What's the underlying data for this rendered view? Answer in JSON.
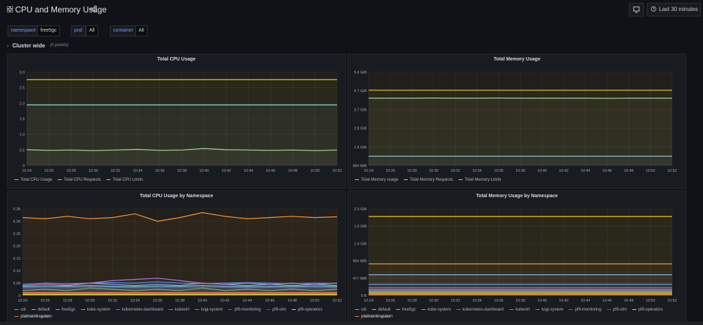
{
  "header": {
    "title": "CPU and Memory Usage",
    "time_range": "Last 30 minutes"
  },
  "variables": [
    {
      "key": "namespace",
      "value": "free5gc"
    },
    {
      "key": "pod",
      "value": "All"
    },
    {
      "key": "container",
      "value": "All"
    }
  ],
  "row": {
    "title": "Cluster wide",
    "count": "(0 panels)"
  },
  "panels": {
    "cpu": {
      "title": "Total CPU Usage"
    },
    "mem": {
      "title": "Total Memory Usage"
    },
    "cpu_ns": {
      "title": "Total CPU Usage by Namespace"
    },
    "mem_ns": {
      "title": "Total Memory Usage by Namespace"
    }
  },
  "colors": {
    "green": "#73bf69",
    "yellow": "#f2cc0c",
    "cyan": "#8ab8ff",
    "teal": "#73bf69",
    "orange": "#ff9830",
    "red": "#f2495c",
    "blue": "#5794f2",
    "purple": "#b877d9",
    "lightblue": "#8ab8ff"
  },
  "chart_data": [
    {
      "type": "line",
      "title": "Total CPU Usage",
      "x": [
        "10:24",
        "10:26",
        "10:28",
        "10:30",
        "10:32",
        "10:34",
        "10:36",
        "10:38",
        "10:40",
        "10:42",
        "10:44",
        "10:46",
        "10:48",
        "10:50",
        "10:52"
      ],
      "ylim": [
        0,
        3.0
      ],
      "yticks": [
        "0",
        "0.5",
        "1.0",
        "1.5",
        "2.0",
        "2.5",
        "3.0"
      ],
      "series": [
        {
          "name": "Total CPU Usage",
          "color": "#a7d99a",
          "values": [
            0.51,
            0.49,
            0.5,
            0.48,
            0.5,
            0.52,
            0.49,
            0.5,
            0.55,
            0.51,
            0.5,
            0.49,
            0.5,
            0.48,
            0.5
          ]
        },
        {
          "name": "Total CPU Requests",
          "color": "#f2cc0c",
          "values": [
            2.76,
            2.76,
            2.76,
            2.76,
            2.76,
            2.76,
            2.76,
            2.76,
            2.76,
            2.76,
            2.76,
            2.76,
            2.76,
            2.76,
            2.76
          ]
        },
        {
          "name": "Total CPU Limits",
          "color": "#8bd7e8",
          "values": [
            1.95,
            1.95,
            1.95,
            1.95,
            1.95,
            1.95,
            1.95,
            1.95,
            1.95,
            1.95,
            1.95,
            1.95,
            1.95,
            1.95,
            1.95
          ]
        }
      ]
    },
    {
      "type": "line",
      "title": "Total Memory Usage",
      "x": [
        "10:24",
        "10:26",
        "10:28",
        "10:30",
        "10:32",
        "10:34",
        "10:36",
        "10:38",
        "10:40",
        "10:42",
        "10:44",
        "10:46",
        "10:48",
        "10:50",
        "10:52"
      ],
      "ylim": [
        0.93,
        5.6
      ],
      "yticks": [
        "954 MiB",
        "1.9 GiB",
        "2.8 GiB",
        "3.7 GiB",
        "4.7 GiB",
        "5.6 GiB"
      ],
      "series": [
        {
          "name": "Total Memory usage",
          "color": "#a7d99a",
          "values": [
            4.3,
            4.3,
            4.3,
            4.31,
            4.3,
            4.3,
            4.31,
            4.3,
            4.3,
            4.3,
            4.3,
            4.29,
            4.3,
            4.3,
            4.3
          ]
        },
        {
          "name": "Total Memory Requests",
          "color": "#f2cc0c",
          "values": [
            4.7,
            4.7,
            4.7,
            4.7,
            4.7,
            4.7,
            4.7,
            4.7,
            4.7,
            4.7,
            4.7,
            4.7,
            4.7,
            4.7,
            4.7
          ]
        },
        {
          "name": "Total Memory Limits",
          "color": "#8bd7e8",
          "values": [
            1.4,
            1.4,
            1.4,
            1.4,
            1.4,
            1.4,
            1.4,
            1.4,
            1.4,
            1.4,
            1.4,
            1.4,
            1.4,
            1.4,
            1.4
          ]
        }
      ]
    },
    {
      "type": "line",
      "title": "Total CPU Usage by Namespace",
      "x": [
        "10:24",
        "10:26",
        "10:28",
        "10:30",
        "10:32",
        "10:34",
        "10:36",
        "10:38",
        "10:40",
        "10:42",
        "10:44",
        "10:46",
        "10:48",
        "10:50",
        "10:52"
      ],
      "ylim": [
        0,
        0.35
      ],
      "yticks": [
        "0",
        "0.05",
        "0.10",
        "0.15",
        "0.20",
        "0.25",
        "0.30",
        "0.35"
      ],
      "series": [
        {
          "name": "cdi",
          "color": "#73bf69",
          "values": [
            0.02,
            0.025,
            0.02,
            0.03,
            0.025,
            0.02,
            0.025,
            0.02,
            0.03,
            0.02,
            0.025,
            0.02,
            0.025,
            0.02,
            0.025
          ]
        },
        {
          "name": "default",
          "color": "#f2cc0c",
          "values": [
            0.005,
            0.005,
            0.005,
            0.005,
            0.005,
            0.005,
            0.005,
            0.005,
            0.005,
            0.005,
            0.005,
            0.005,
            0.005,
            0.005,
            0.005
          ]
        },
        {
          "name": "free5gc",
          "color": "#8ab8ff",
          "values": [
            0.04,
            0.045,
            0.04,
            0.05,
            0.045,
            0.04,
            0.045,
            0.04,
            0.05,
            0.045,
            0.04,
            0.045,
            0.04,
            0.045,
            0.04
          ]
        },
        {
          "name": "kube-system",
          "color": "#ff9830",
          "values": [
            0.315,
            0.31,
            0.32,
            0.31,
            0.315,
            0.33,
            0.3,
            0.315,
            0.335,
            0.32,
            0.31,
            0.315,
            0.32,
            0.315,
            0.318
          ]
        },
        {
          "name": "kubernetes-dashboard",
          "color": "#f2495c",
          "values": [
            0.012,
            0.012,
            0.012,
            0.012,
            0.012,
            0.012,
            0.012,
            0.012,
            0.012,
            0.012,
            0.012,
            0.012,
            0.012,
            0.012,
            0.012
          ]
        },
        {
          "name": "kubevirt",
          "color": "#5794f2",
          "values": [
            0.045,
            0.05,
            0.048,
            0.05,
            0.052,
            0.05,
            0.055,
            0.05,
            0.048,
            0.05,
            0.052,
            0.05,
            0.048,
            0.05,
            0.049
          ]
        },
        {
          "name": "luigi-system",
          "color": "#b877d9",
          "values": [
            0.04,
            0.045,
            0.042,
            0.05,
            0.06,
            0.065,
            0.07,
            0.06,
            0.05,
            0.045,
            0.05,
            0.045,
            0.05,
            0.045,
            0.05
          ]
        },
        {
          "name": "pf9-monitoring",
          "color": "#705da0",
          "values": [
            0.03,
            0.032,
            0.03,
            0.035,
            0.033,
            0.03,
            0.032,
            0.03,
            0.034,
            0.032,
            0.03,
            0.032,
            0.03,
            0.032,
            0.031
          ]
        },
        {
          "name": "pf9-olm",
          "color": "#37872d",
          "values": [
            0.008,
            0.008,
            0.008,
            0.008,
            0.008,
            0.008,
            0.008,
            0.008,
            0.008,
            0.008,
            0.008,
            0.008,
            0.008,
            0.008,
            0.008
          ]
        },
        {
          "name": "pf9-operators",
          "color": "#fade2a",
          "values": [
            0.003,
            0.003,
            0.003,
            0.003,
            0.003,
            0.003,
            0.003,
            0.003,
            0.003,
            0.003,
            0.003,
            0.003,
            0.003,
            0.003,
            0.003
          ]
        },
        {
          "name": "platform9-system",
          "color": "#6ed0e0",
          "values": [
            0.035,
            0.038,
            0.036,
            0.04,
            0.037,
            0.035,
            0.038,
            0.036,
            0.04,
            0.037,
            0.035,
            0.037,
            0.036,
            0.038,
            0.036
          ]
        },
        {
          "name": "pso-namespace",
          "color": "#ef843c",
          "values": [
            0.01,
            0.01,
            0.01,
            0.01,
            0.01,
            0.01,
            0.01,
            0.01,
            0.01,
            0.01,
            0.01,
            0.01,
            0.01,
            0.01,
            0.01
          ]
        }
      ]
    },
    {
      "type": "line",
      "title": "Total Memory Usage by Namespace",
      "x": [
        "10:24",
        "10:26",
        "10:28",
        "10:30",
        "10:32",
        "10:34",
        "10:36",
        "10:38",
        "10:40",
        "10:42",
        "10:44",
        "10:46",
        "10:48",
        "10:50",
        "10:52"
      ],
      "ylim": [
        0,
        2.3
      ],
      "yticks": [
        "0 B",
        "477 MiB",
        "954 MiB",
        "1.4 GiB",
        "1.9 GiB",
        "2.3 GiB"
      ],
      "series": [
        {
          "name": "cdi",
          "color": "#73bf69",
          "values": [
            0.1,
            0.1,
            0.1,
            0.1,
            0.1,
            0.1,
            0.1,
            0.1,
            0.1,
            0.1,
            0.1,
            0.1,
            0.1,
            0.1,
            0.1
          ]
        },
        {
          "name": "default",
          "color": "#f2cc0c",
          "values": [
            0.02,
            0.02,
            0.02,
            0.02,
            0.02,
            0.02,
            0.02,
            0.02,
            0.02,
            0.02,
            0.02,
            0.02,
            0.02,
            0.02,
            0.02
          ]
        },
        {
          "name": "free5gc",
          "color": "#8ab8ff",
          "values": [
            0.55,
            0.55,
            0.55,
            0.55,
            0.55,
            0.55,
            0.55,
            0.55,
            0.55,
            0.55,
            0.55,
            0.55,
            0.55,
            0.55,
            0.55
          ]
        },
        {
          "name": "kube-system",
          "color": "#ff9830",
          "values": [
            0.84,
            0.84,
            0.84,
            0.84,
            0.84,
            0.84,
            0.84,
            0.84,
            0.84,
            0.84,
            0.84,
            0.84,
            0.84,
            0.84,
            0.84
          ]
        },
        {
          "name": "kubernetes-dashboard",
          "color": "#f2495c",
          "values": [
            0.05,
            0.05,
            0.05,
            0.05,
            0.05,
            0.05,
            0.05,
            0.05,
            0.05,
            0.05,
            0.05,
            0.05,
            0.05,
            0.05,
            0.05
          ]
        },
        {
          "name": "kubevirt",
          "color": "#5794f2",
          "values": [
            0.3,
            0.3,
            0.3,
            0.3,
            0.3,
            0.3,
            0.3,
            0.3,
            0.3,
            0.3,
            0.3,
            0.3,
            0.3,
            0.3,
            0.3
          ]
        },
        {
          "name": "luigi-system",
          "color": "#b877d9",
          "values": [
            0.2,
            0.2,
            0.2,
            0.2,
            0.2,
            0.2,
            0.2,
            0.2,
            0.2,
            0.2,
            0.2,
            0.2,
            0.2,
            0.2,
            0.2
          ]
        },
        {
          "name": "pf9-monitoring",
          "color": "#705da0",
          "values": [
            0.12,
            0.12,
            0.12,
            0.12,
            0.12,
            0.12,
            0.12,
            0.12,
            0.12,
            0.12,
            0.12,
            0.12,
            0.12,
            0.12,
            0.12
          ]
        },
        {
          "name": "pf9-olm",
          "color": "#37872d",
          "values": [
            0.04,
            0.04,
            0.04,
            0.04,
            0.04,
            0.04,
            0.04,
            0.04,
            0.04,
            0.04,
            0.04,
            0.04,
            0.04,
            0.04,
            0.04
          ]
        },
        {
          "name": "pf9-operators",
          "color": "#fade2a",
          "values": [
            0.07,
            0.07,
            0.07,
            0.07,
            0.07,
            0.07,
            0.07,
            0.07,
            0.07,
            0.07,
            0.07,
            0.07,
            0.07,
            0.07,
            0.07
          ]
        },
        {
          "name": "platform9-system",
          "color": "#6ed0e0",
          "values": [
            0.15,
            0.15,
            0.15,
            0.15,
            0.15,
            0.15,
            0.15,
            0.15,
            0.15,
            0.15,
            0.15,
            0.15,
            0.15,
            0.15,
            0.15
          ]
        },
        {
          "name": "pso-namespace",
          "color": "#ef843c",
          "values": [
            0.03,
            0.03,
            0.03,
            0.03,
            0.03,
            0.03,
            0.03,
            0.03,
            0.03,
            0.03,
            0.03,
            0.03,
            0.03,
            0.03,
            0.03
          ]
        },
        {
          "name": "",
          "color": "#f2cc0c",
          "values": [
            2.1,
            2.1,
            2.1,
            2.1,
            2.1,
            2.1,
            2.1,
            2.1,
            2.1,
            2.1,
            2.1,
            2.1,
            2.1,
            2.1,
            2.1
          ]
        }
      ]
    }
  ]
}
